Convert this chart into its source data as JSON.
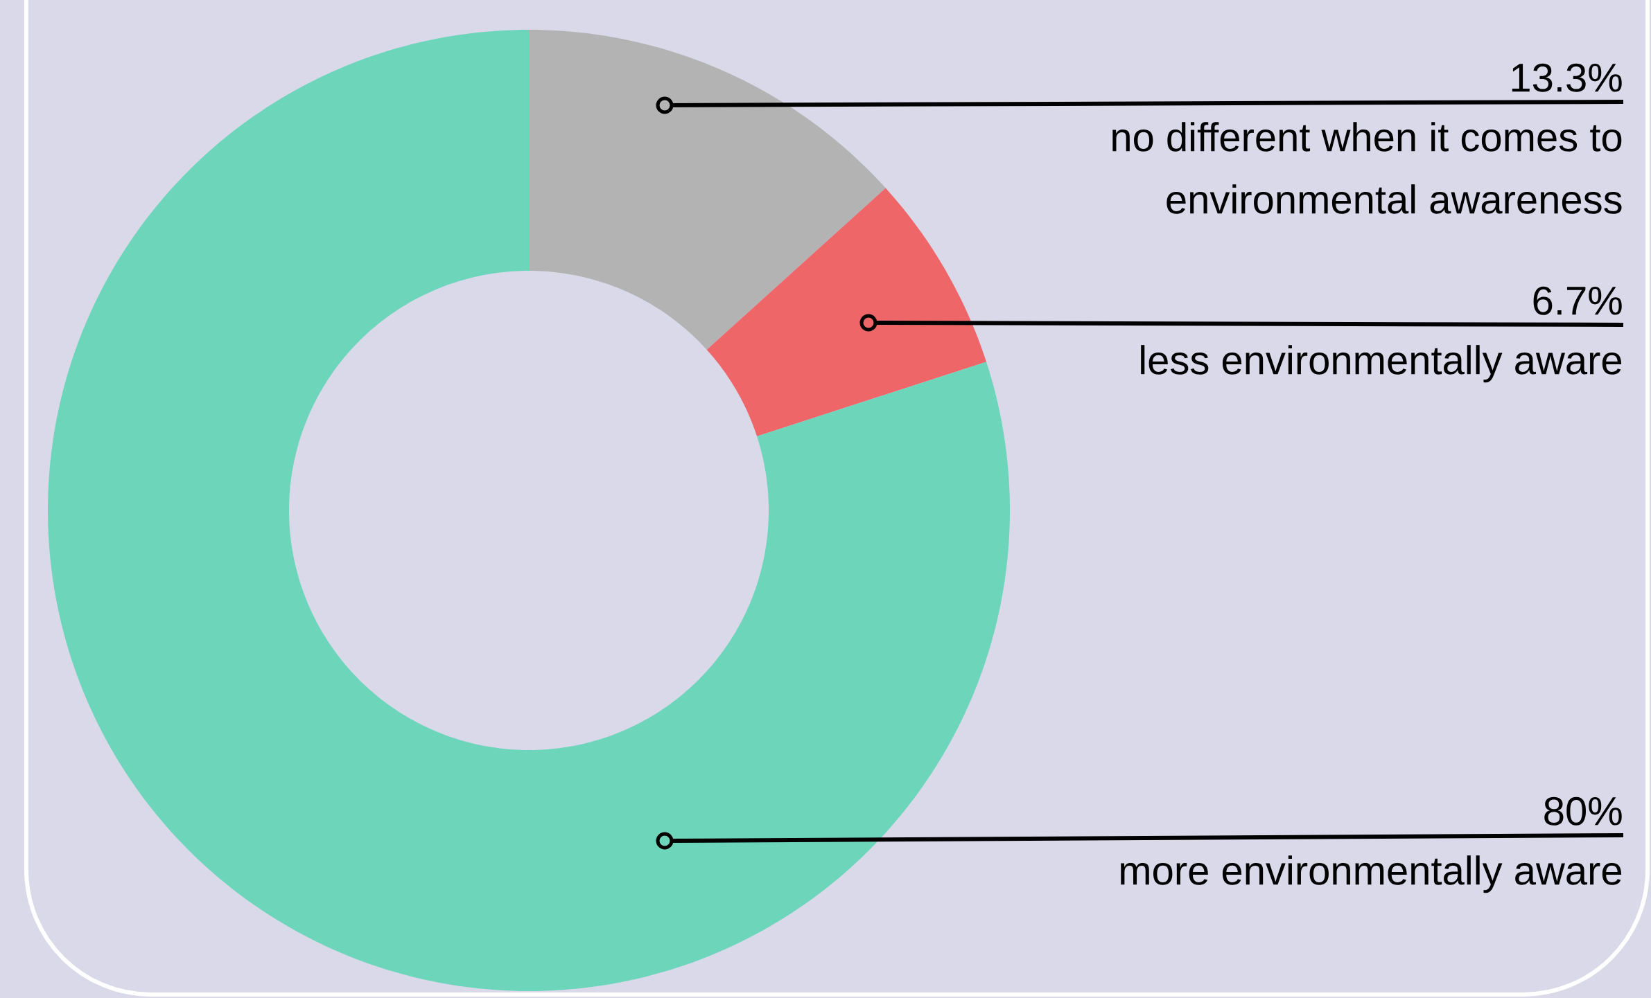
{
  "chart_data": {
    "type": "donut",
    "categories": [
      "no different when it comes to environmental awareness",
      "less environmentally aware",
      "more environmentally aware"
    ],
    "values": [
      13.3,
      6.7,
      80
    ],
    "value_labels": [
      "13.3%",
      "6.7%",
      "80%"
    ],
    "colors": [
      "#b3b3b3",
      "#ef6669",
      "#6dd5ba"
    ]
  }
}
